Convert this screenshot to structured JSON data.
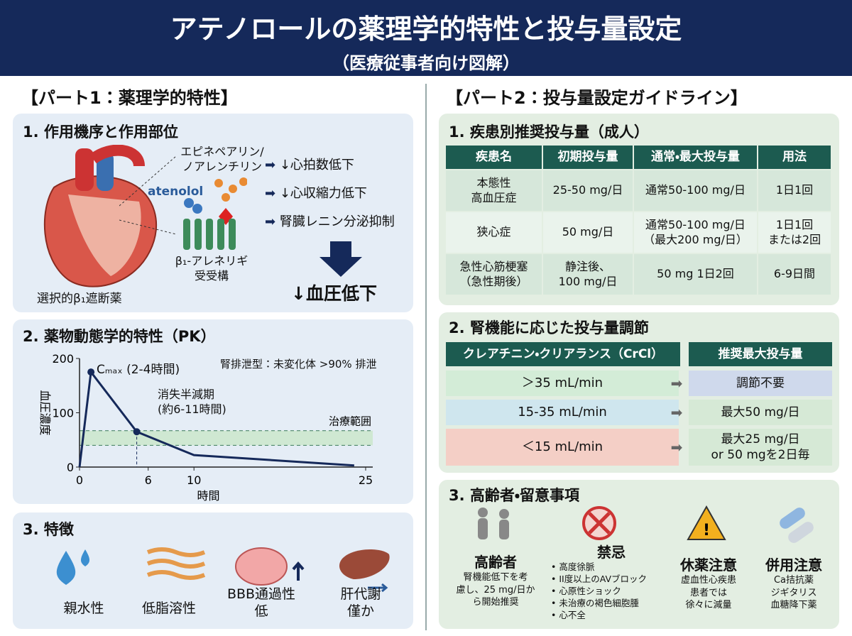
{
  "header": {
    "title": "アテノロールの薬理学的特性と投与量設定",
    "subtitle": "（医療従事者向け図解）"
  },
  "part1": {
    "title": "【パート1：薬理学的特性】",
    "mechanism": {
      "title": "1. 作用機序と作用部位",
      "ligand": "エピネペアリン/\nノアレンチリン",
      "drug": "atenolol",
      "receptor": "β₁-アレネリギ\n受受構",
      "caption": "選択的β₁遮断薬",
      "effects": [
        "↓心拍数低下",
        "↓心収縮力低下",
        "腎臓レニン分泌抑制"
      ],
      "result": "↓血圧低下"
    },
    "features": {
      "title": "3. 特徴",
      "items": [
        "親水性",
        "低脂溶性",
        "BBB通過性\n低",
        "肝代謝\n僅か"
      ]
    }
  },
  "chart_data": {
    "type": "line",
    "title": "2. 薬物動態学的特性（PK）",
    "x_label": "時間",
    "y_label": "血圧濃度",
    "x": [
      0,
      1,
      5,
      10,
      24
    ],
    "values": [
      0,
      175,
      65,
      22,
      3
    ],
    "color": "#15295a",
    "xlim": [
      0,
      25
    ],
    "xticks": [
      0,
      6,
      10,
      25
    ],
    "ylim": [
      0,
      200
    ],
    "yticks": [
      0,
      100,
      200
    ],
    "cmax_label": "Cₘₐₓ (2-4時間)",
    "half_life_label": "消失半減期\n(約6-11時間)",
    "therapeutic_range": {
      "label": "治療範囲",
      "range": [
        40,
        67
      ]
    },
    "excretion_note": "腎排泄型：未変化体 >90% 排泄"
  },
  "part2": {
    "title": "【パート2：投与量設定ガイドライン】",
    "dosing": {
      "title": "1. 疾患別推奨投与量（成人）",
      "header": [
        "疾患名",
        "初期投与量",
        "通常・最大投与量",
        "用法"
      ],
      "rows": [
        [
          "本態性\n高血圧症",
          "25-50 mg/日",
          "通常50-100 mg/日",
          "1日1回"
        ],
        [
          "狭心症",
          "50 mg/日",
          "通常50-100 mg/日\n（最大200 mg/日）",
          "1日1回\nまたは2回"
        ],
        [
          "急性心筋梗塞\n（急性期後）",
          "静注後、\n100 mg/日",
          "50 mg 1日2回",
          "6-9日間"
        ]
      ]
    },
    "renal": {
      "title": "2. 腎機能に応じた投与量調節",
      "header": [
        "クレアチニン・クリアランス（CrCl）",
        "推奨最大投与量"
      ],
      "rows": [
        [
          "＞35 mL/min",
          "調節不要"
        ],
        [
          "15-35 mL/min",
          "最大50 mg/日"
        ],
        [
          "＜15 mL/min",
          "最大25 mg/日\nor 50 mgを2日毎"
        ]
      ]
    },
    "cautions": {
      "title": "3. 高齢者・留意事項",
      "items": [
        {
          "title": "高齢者",
          "body": "腎機能低下を考\n慮し、25 mg/日か\nら開始推奨"
        },
        {
          "title": "禁忌",
          "list": [
            "高度徐脈",
            "II度以上のAVブロック",
            "心原性ショック",
            "未治療の褐色細胞腫",
            "心不全"
          ]
        },
        {
          "title": "休薬注意",
          "body": "虚血性心疾患\n患者では\n徐々に減量"
        },
        {
          "title": "併用注意",
          "body": "Ca拮抗薬\nジギタリス\n血糖降下薬"
        }
      ]
    }
  }
}
